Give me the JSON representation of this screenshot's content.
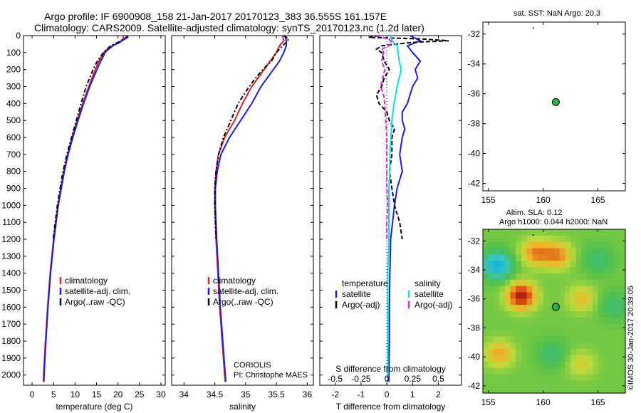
{
  "header": {
    "line1": "Argo profile: IF 6900908_158 21-Jan-2017 20170123_383 36.555S 161.157E",
    "line2": "Climatology: CARS2009. Satellite-adjusted climatology: synTS_20170123.nc (1.2d later)"
  },
  "colors": {
    "climatology": "#e02020",
    "satellite": "#1a1aff",
    "argo": "#000000",
    "satellite_s": "#00e5ee",
    "argo_s": "#e020e0",
    "argo_marker": "#2fb04a"
  },
  "footer": {
    "coriolis": "CORIOLIS",
    "pi": "PI: Christophe MAES",
    "stamp": "©IMOS 30-Jan-2017 20:39:05"
  },
  "chart_data": [
    {
      "id": "temperature",
      "type": "line",
      "xlabel": "temperature (deg C)",
      "xlim": [
        -2,
        31
      ],
      "xticks": [
        0,
        5,
        10,
        15,
        20,
        25,
        30
      ],
      "xtick_labels": [
        "0",
        "5",
        "10",
        "15",
        "20",
        "25",
        "30"
      ],
      "ylim": [
        0,
        2060
      ],
      "yticks": [
        0,
        100,
        200,
        300,
        400,
        500,
        600,
        700,
        800,
        900,
        1000,
        1100,
        1200,
        1300,
        1400,
        1500,
        1600,
        1700,
        1800,
        1900,
        2000
      ],
      "yreverse": true,
      "legend": [
        "climatology",
        "satellite-adj. clim.",
        "Argo(..raw -QC)"
      ],
      "series": [
        {
          "name": "climatology",
          "color": "#e02020",
          "dash": "",
          "depth": [
            0,
            20,
            40,
            60,
            80,
            100,
            150,
            200,
            300,
            400,
            500,
            600,
            700,
            800,
            900,
            1000,
            1200,
            1400,
            1600,
            1800,
            2000,
            2040
          ],
          "values": [
            21.3,
            21.2,
            20.5,
            18.6,
            17.5,
            16.7,
            15.6,
            14.7,
            13.2,
            11.8,
            10.5,
            9.3,
            8.3,
            7.4,
            6.7,
            6.0,
            5.0,
            4.2,
            3.6,
            3.1,
            2.7,
            2.65
          ]
        },
        {
          "name": "satellite-adj. clim.",
          "color": "#1a1aff",
          "dash": "",
          "depth": [
            0,
            10,
            20,
            40,
            60,
            80,
            100,
            150,
            200,
            300,
            400,
            500,
            600,
            700,
            800,
            900,
            1000,
            1200,
            1400,
            1600,
            1800,
            2000,
            2040
          ],
          "values": [
            22.2,
            22.3,
            21.6,
            20.3,
            18.8,
            17.8,
            17.0,
            16.0,
            15.1,
            13.4,
            12.0,
            10.7,
            9.5,
            8.4,
            7.5,
            6.8,
            6.1,
            5.1,
            4.3,
            3.7,
            3.2,
            2.8,
            2.75
          ]
        },
        {
          "name": "Argo(..raw -QC)",
          "color": "#000000",
          "dash": "6,3,2,3",
          "depth": [
            0,
            10,
            20,
            40,
            60,
            80,
            100,
            150,
            200,
            300,
            400,
            500,
            600,
            700,
            800,
            900,
            1000,
            1100,
            1200
          ],
          "values": [
            22.0,
            22.0,
            21.3,
            20.0,
            18.3,
            17.4,
            16.6,
            15.2,
            14.2,
            12.6,
            11.4,
            10.3,
            9.2,
            8.1,
            7.2,
            6.5,
            5.9,
            5.4,
            4.9
          ]
        }
      ]
    },
    {
      "id": "salinity",
      "type": "line",
      "xlabel": "salinity",
      "xlim": [
        33.8,
        36.1
      ],
      "xticks": [
        34,
        34.5,
        35,
        35.5,
        36
      ],
      "xtick_labels": [
        "34",
        "34.5",
        "35",
        "35.5",
        "36"
      ],
      "ylim": [
        0,
        2060
      ],
      "yreverse": true,
      "legend": [
        "climatology",
        "satellite-adj. clim.",
        "Argo(..raw -QC)"
      ],
      "series": [
        {
          "name": "climatology",
          "color": "#e02020",
          "dash": "",
          "depth": [
            0,
            30,
            60,
            100,
            150,
            200,
            250,
            300,
            400,
            500,
            600,
            700,
            800,
            900,
            1000,
            1200,
            1400,
            1600,
            1800,
            2000,
            2040
          ],
          "values": [
            35.6,
            35.62,
            35.55,
            35.5,
            35.4,
            35.3,
            35.2,
            35.1,
            34.95,
            34.82,
            34.66,
            34.56,
            34.52,
            34.5,
            34.5,
            34.52,
            34.55,
            34.58,
            34.62,
            34.66,
            34.67
          ]
        },
        {
          "name": "satellite-adj. clim.",
          "color": "#1a1aff",
          "dash": "",
          "depth": [
            0,
            30,
            60,
            100,
            150,
            200,
            250,
            300,
            400,
            500,
            600,
            700,
            800,
            900,
            1000,
            1200,
            1400,
            1600,
            1800,
            2000,
            2040
          ],
          "values": [
            35.64,
            35.66,
            35.66,
            35.62,
            35.55,
            35.45,
            35.35,
            35.25,
            35.1,
            34.92,
            34.74,
            34.6,
            34.54,
            34.51,
            34.51,
            34.53,
            34.56,
            34.59,
            34.63,
            34.67,
            34.68
          ]
        },
        {
          "name": "Argo(..raw -QC)",
          "color": "#000000",
          "dash": "6,3,2,3",
          "depth": [
            0,
            20,
            40,
            60,
            80,
            100,
            150,
            200,
            250,
            300,
            400,
            500,
            600,
            700,
            800,
            900,
            1000,
            1100,
            1200
          ],
          "values": [
            35.62,
            35.7,
            35.66,
            35.6,
            35.55,
            35.5,
            35.42,
            35.28,
            35.16,
            35.06,
            34.88,
            34.76,
            34.64,
            34.56,
            34.52,
            34.5,
            34.5,
            34.51,
            34.52
          ]
        }
      ]
    },
    {
      "id": "difference",
      "type": "line",
      "xlabel": "T difference from climatology",
      "xlabel_top": "S difference from climatology",
      "xlim": [
        -2.6,
        2.9
      ],
      "xticks": [
        -2,
        -1,
        0,
        1,
        2
      ],
      "xtick_labels": [
        "-2",
        "-1",
        "0",
        "1",
        "2"
      ],
      "sticks": [
        -0.5,
        -0.25,
        0,
        0.25,
        0.5
      ],
      "stick_labels": [
        "-0.5",
        "-0.25",
        "0",
        "0.25",
        "0.5"
      ],
      "s_scale": 4,
      "ylim": [
        0,
        2060
      ],
      "yreverse": true,
      "legend_headers": [
        "temperature",
        "salinity"
      ],
      "legend": [
        "satellite",
        "Argo(-adj)",
        "satellite",
        "Argo(-adj)"
      ],
      "series": [
        {
          "name": "satellite",
          "group": "temperature",
          "color": "#1a1aff",
          "dash": "",
          "depth": [
            0,
            30,
            60,
            100,
            150,
            200,
            250,
            300,
            350,
            400,
            450,
            500,
            550,
            600,
            700,
            800,
            900,
            1000,
            1200,
            1400,
            1600,
            1800,
            2000,
            2040
          ],
          "values": [
            0.9,
            1.3,
            0.8,
            1.0,
            1.3,
            1.1,
            1.2,
            1.0,
            0.9,
            0.8,
            0.6,
            0.6,
            0.7,
            0.6,
            0.5,
            0.6,
            0.4,
            0.3,
            0.15,
            0.12,
            0.1,
            0.1,
            0.08,
            0.08
          ]
        },
        {
          "name": "Argo(-adj)",
          "group": "temperature",
          "color": "#000000",
          "dash": "6,3",
          "depth": [
            0,
            10,
            20,
            30,
            40,
            60,
            80,
            100,
            150,
            200,
            250,
            300,
            350,
            400,
            450,
            500,
            550,
            600,
            700,
            800,
            900,
            1000,
            1100,
            1200
          ],
          "values": [
            -0.3,
            -0.7,
            1.4,
            2.4,
            1.0,
            -0.2,
            -0.4,
            -0.2,
            -0.1,
            0.1,
            -0.1,
            -0.2,
            -0.4,
            -0.3,
            0.0,
            0.1,
            0.3,
            0.2,
            0.2,
            0.1,
            0.2,
            0.3,
            0.5,
            0.6
          ]
        },
        {
          "name": "satellite",
          "group": "salinity",
          "color": "#00e5ee",
          "dash": "",
          "depth": [
            0,
            30,
            60,
            100,
            150,
            200,
            300,
            400,
            500,
            600,
            700,
            800,
            900,
            1000,
            1200,
            1400,
            1600,
            1800,
            2000,
            2040
          ],
          "values": [
            0.04,
            0.05,
            0.1,
            0.11,
            0.12,
            0.14,
            0.1,
            0.07,
            0.05,
            0.04,
            0.03,
            0.03,
            0.02,
            0.02,
            0.02,
            0.01,
            0.01,
            0.01,
            0.01,
            0.01
          ]
        },
        {
          "name": "Argo(-adj)",
          "group": "salinity",
          "color": "#e020e0",
          "dash": "6,3",
          "depth": [
            0,
            20,
            40,
            60,
            80,
            100,
            150,
            200,
            250,
            300,
            350,
            400,
            500,
            600,
            700,
            800,
            900,
            1000,
            1100,
            1200
          ],
          "values": [
            -0.1,
            0.02,
            0.05,
            0.02,
            -0.05,
            -0.03,
            -0.05,
            -0.02,
            -0.04,
            -0.06,
            -0.03,
            -0.02,
            -0.01,
            0.0,
            0.0,
            0.0,
            0.0,
            0.01,
            0.0,
            0.0
          ]
        }
      ]
    },
    {
      "id": "sst_map",
      "type": "scatter",
      "title": "sat. SST: NaN Argo: 20.3",
      "xlim": [
        154.5,
        167.5
      ],
      "ylim": [
        -42.5,
        -31.2
      ],
      "xticks": [
        155,
        160,
        165
      ],
      "yticks": [
        -32,
        -34,
        -36,
        -38,
        -40,
        -42
      ],
      "points": [
        {
          "lon": 161.157,
          "lat": -36.555
        }
      ]
    },
    {
      "id": "sla_map",
      "type": "heatmap",
      "title_line1": "Altim. SLA: 0.12",
      "title_line2": "Argo h1000: 0.044 h2000: NaN",
      "xlim": [
        154.5,
        167.5
      ],
      "ylim": [
        -42.5,
        -31.2
      ],
      "xticks": [
        155,
        160,
        165
      ],
      "yticks": [
        -32,
        -34,
        -36,
        -38,
        -40,
        -42
      ],
      "points": [
        {
          "lon": 161.157,
          "lat": -36.555
        }
      ],
      "features": [
        {
          "lon": 155.8,
          "lat": -33.7,
          "amp": -0.9
        },
        {
          "lon": 158.0,
          "lat": -35.8,
          "amp": 1.0
        },
        {
          "lon": 159.3,
          "lat": -32.8,
          "amp": 0.6
        },
        {
          "lon": 161.3,
          "lat": -33.0,
          "amp": 0.6
        },
        {
          "lon": 165.0,
          "lat": -33.3,
          "amp": -0.3
        },
        {
          "lon": 166.5,
          "lat": -36.5,
          "amp": -0.3
        },
        {
          "lon": 156.0,
          "lat": -39.8,
          "amp": 0.5
        },
        {
          "lon": 163.5,
          "lat": -36.0,
          "amp": 0.4
        },
        {
          "lon": 160.8,
          "lat": -39.8,
          "amp": -0.3
        },
        {
          "lon": 163.5,
          "lat": -40.5,
          "amp": 0.3
        }
      ]
    }
  ]
}
